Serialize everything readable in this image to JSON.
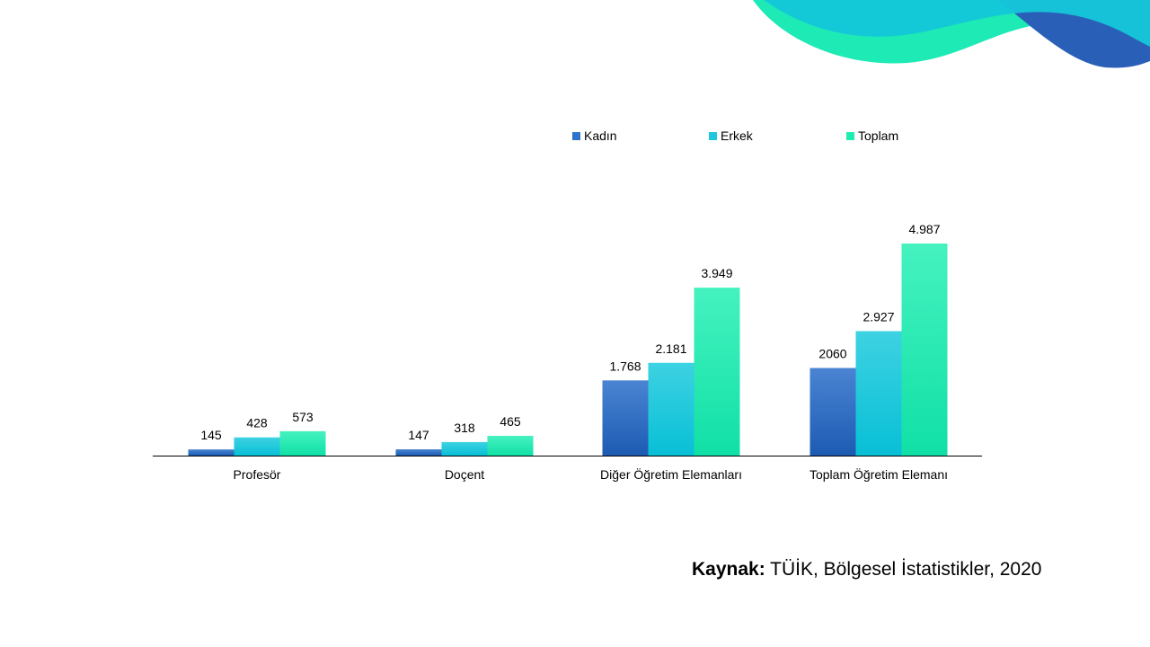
{
  "colors": {
    "kadin": "#2e74c9",
    "erkek": "#1ec7dc",
    "toplam": "#1eecb0",
    "deco_dark": "#1f6bbf",
    "deco_cyan": "#12c6d6",
    "deco_green": "#1eeab5"
  },
  "chart_data": {
    "type": "bar",
    "title": "",
    "xlabel": "",
    "ylabel": "",
    "categories": [
      "Profesör",
      "Doçent",
      "Diğer Öğretim Elemanları",
      "Toplam Öğretim Elemanı"
    ],
    "series": [
      {
        "name": "Kadın",
        "values": [
          145,
          147,
          1768,
          2060
        ],
        "labels": [
          "145",
          "147",
          "1.768",
          "2060"
        ]
      },
      {
        "name": "Erkek",
        "values": [
          428,
          318,
          2181,
          2927
        ],
        "labels": [
          "428",
          "318",
          "2.181",
          "2.927"
        ]
      },
      {
        "name": "Toplam",
        "values": [
          573,
          465,
          3949,
          4987
        ],
        "labels": [
          "573",
          "465",
          "3.949",
          "4.987"
        ]
      }
    ],
    "ylim": [
      0,
      5500
    ],
    "grid": false,
    "legend_position": "top-center"
  },
  "source": {
    "label": "Kaynak:",
    "text": " TÜİK, Bölgesel İstatistikler, 2020"
  }
}
